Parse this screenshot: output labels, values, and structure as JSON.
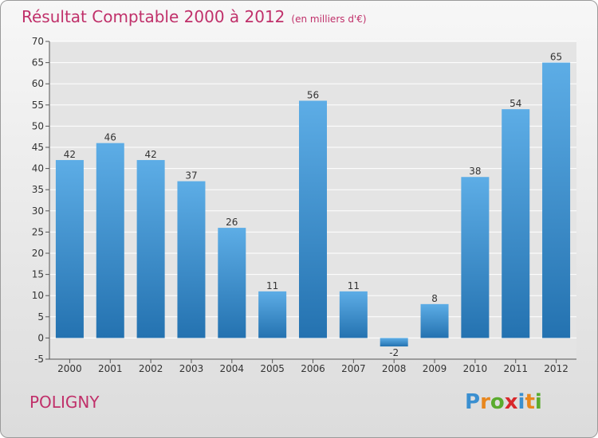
{
  "chart_data": {
    "type": "bar",
    "title": "Résultat Comptable 2000 à 2012",
    "subtitle": "(en milliers d'€)",
    "categories": [
      "2000",
      "2001",
      "2002",
      "2003",
      "2004",
      "2005",
      "2006",
      "2007",
      "2008",
      "2009",
      "2010",
      "2011",
      "2012"
    ],
    "values": [
      42,
      46,
      42,
      37,
      26,
      11,
      56,
      11,
      -2,
      8,
      38,
      54,
      65
    ],
    "xlabel": "",
    "ylabel": "",
    "ylim": [
      -5,
      70
    ],
    "yticks": [
      -5,
      0,
      5,
      10,
      15,
      20,
      25,
      30,
      35,
      40,
      45,
      50,
      55,
      60,
      65,
      70
    ],
    "grid": true
  },
  "place_name": "POLIGNY",
  "logo": {
    "letters": [
      "P",
      "r",
      "o",
      "x",
      "i",
      "t",
      "i"
    ],
    "colors": [
      "#3a8fd0",
      "#e8871e",
      "#5aab2e",
      "#d8282c",
      "#3a8fd0",
      "#e8871e",
      "#5aab2e"
    ]
  },
  "colors": {
    "bar_top": "#5dade6",
    "bar_bottom": "#2472b0",
    "title": "#c0306a",
    "grid": "#ffffff"
  }
}
